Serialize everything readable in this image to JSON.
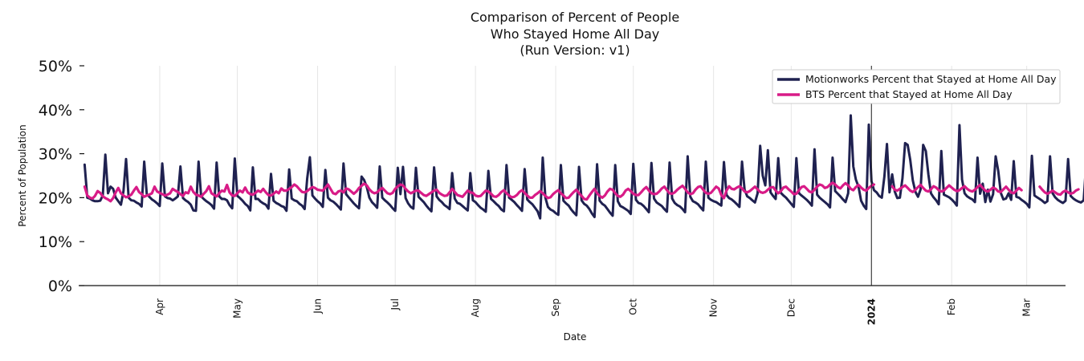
{
  "chart_data": {
    "type": "line",
    "title_lines": [
      "Comparison of Percent of People",
      "Who Stayed Home All Day",
      "(Run Version: v1)"
    ],
    "xlabel": "Date",
    "ylabel": "Percent of Population",
    "ylim": [
      0,
      50
    ],
    "yticks": [
      0,
      10,
      20,
      30,
      40,
      50
    ],
    "ytick_labels": [
      "0%",
      "10%",
      "20%",
      "30%",
      "40%",
      "50%"
    ],
    "x_range_days": [
      0,
      381
    ],
    "start_date": "2023-03-01",
    "month_ticks": [
      {
        "label": "Apr",
        "day": 31,
        "bold": false
      },
      {
        "label": "May",
        "day": 61,
        "bold": false
      },
      {
        "label": "Jun",
        "day": 92,
        "bold": false
      },
      {
        "label": "Jul",
        "day": 122,
        "bold": false
      },
      {
        "label": "Aug",
        "day": 153,
        "bold": false
      },
      {
        "label": "Sep",
        "day": 184,
        "bold": false
      },
      {
        "label": "Oct",
        "day": 214,
        "bold": false
      },
      {
        "label": "Nov",
        "day": 245,
        "bold": false
      },
      {
        "label": "Dec",
        "day": 275,
        "bold": false
      },
      {
        "label": "2024",
        "day": 306,
        "bold": true
      },
      {
        "label": "Feb",
        "day": 337,
        "bold": false
      },
      {
        "label": "Mar",
        "day": 366,
        "bold": false
      }
    ],
    "reference_line_day": 306,
    "legend_position": "top-right",
    "series": [
      {
        "name": "Motionworks Percent that Stayed at Home All Day",
        "color": "#1f2150",
        "x_start": 2,
        "values": [
          27.5,
          20.0,
          19.8,
          19.4,
          19.2,
          19.2,
          19.3,
          20.5,
          29.8,
          21.0,
          22.5,
          22.0,
          20.0,
          19.2,
          18.4,
          21.5,
          28.8,
          20.0,
          19.4,
          19.3,
          18.9,
          18.6,
          18.0,
          28.2,
          20.8,
          20.2,
          19.6,
          19.2,
          18.7,
          18.1,
          27.8,
          20.3,
          19.9,
          19.8,
          19.4,
          19.8,
          20.3,
          27.1,
          19.9,
          19.4,
          19.0,
          18.4,
          17.1,
          17.0,
          28.2,
          20.3,
          19.7,
          19.2,
          18.8,
          18.3,
          17.5,
          28.0,
          20.3,
          19.7,
          19.7,
          19.4,
          18.3,
          17.6,
          28.9,
          20.4,
          19.9,
          19.3,
          18.6,
          18.1,
          17.1,
          26.9,
          19.7,
          19.7,
          19.1,
          18.7,
          18.4,
          17.5,
          25.4,
          19.3,
          18.8,
          18.5,
          18.1,
          17.9,
          17.0,
          26.4,
          19.8,
          19.4,
          19.2,
          18.6,
          18.2,
          17.4,
          24.4,
          29.2,
          20.5,
          19.8,
          19.2,
          18.7,
          17.9,
          26.3,
          20.0,
          19.4,
          19.1,
          18.6,
          18.0,
          17.3,
          27.8,
          20.8,
          20.1,
          19.4,
          18.7,
          18.1,
          17.6,
          24.8,
          24.0,
          22.4,
          20.0,
          19.0,
          18.4,
          17.7,
          27.1,
          20.0,
          19.4,
          18.9,
          18.3,
          17.6,
          17.0,
          26.8,
          20.8,
          27.0,
          19.9,
          18.7,
          17.9,
          17.5,
          26.8,
          20.2,
          19.6,
          19.0,
          18.2,
          17.5,
          16.9,
          26.9,
          20.3,
          19.5,
          19.0,
          18.3,
          17.9,
          17.4,
          25.6,
          19.8,
          18.8,
          18.6,
          18.1,
          17.6,
          17.1,
          25.6,
          19.4,
          19.0,
          18.3,
          17.7,
          17.3,
          16.8,
          26.1,
          19.7,
          19.2,
          18.6,
          18.1,
          17.3,
          16.9,
          27.4,
          20.0,
          19.5,
          19.0,
          18.3,
          17.7,
          17.0,
          26.5,
          19.6,
          19.0,
          18.5,
          17.7,
          16.9,
          15.3,
          29.1,
          20.0,
          17.9,
          17.3,
          17.0,
          16.5,
          16.1,
          27.4,
          19.3,
          18.7,
          18.2,
          17.3,
          16.6,
          16.0,
          27.0,
          19.4,
          18.6,
          18.2,
          17.4,
          16.4,
          15.6,
          27.6,
          19.3,
          18.6,
          18.2,
          17.4,
          16.6,
          15.9,
          27.4,
          19.2,
          18.1,
          17.8,
          17.4,
          17.0,
          16.3,
          27.7,
          19.5,
          18.8,
          18.6,
          18.1,
          17.4,
          16.7,
          27.9,
          19.8,
          18.9,
          18.5,
          18.1,
          17.4,
          16.8,
          28.0,
          19.8,
          18.8,
          18.3,
          18.0,
          17.4,
          16.7,
          29.4,
          20.2,
          19.2,
          18.9,
          18.5,
          17.8,
          17.1,
          28.2,
          20.0,
          19.5,
          19.2,
          19.0,
          18.6,
          18.2,
          28.1,
          20.6,
          19.9,
          19.6,
          19.1,
          18.5,
          17.9,
          28.2,
          21.8,
          20.3,
          19.9,
          19.4,
          18.9,
          21.0,
          31.8,
          25.0,
          22.8,
          30.8,
          21.2,
          20.4,
          19.7,
          29.0,
          21.1,
          20.5,
          20.0,
          19.3,
          18.6,
          17.9,
          29.0,
          21.0,
          20.5,
          20.0,
          19.5,
          18.9,
          18.2,
          31.0,
          20.7,
          20.0,
          19.5,
          19.0,
          18.5,
          17.8,
          29.1,
          21.5,
          20.9,
          20.3,
          19.6,
          19.0,
          21.0,
          38.7,
          27.1,
          24.1,
          22.5,
          19.3,
          18.2,
          17.4,
          36.6,
          23.8,
          21.7,
          21.2,
          20.4,
          20.0,
          24.8,
          32.2,
          21.2,
          25.3,
          21.4,
          19.9,
          20.0,
          24.4,
          32.4,
          32.0,
          28.6,
          23.9,
          21.3,
          20.2,
          21.9,
          32.0,
          30.6,
          25.3,
          21.0,
          20.1,
          19.4,
          18.5,
          30.6,
          20.7,
          20.4,
          20.1,
          19.6,
          19.0,
          18.2,
          36.5,
          24.1,
          21.0,
          20.3,
          19.9,
          19.6,
          19.0,
          29.1,
          20.9,
          23.2,
          19.0,
          21.8,
          19.1,
          20.8,
          29.4,
          26.1,
          21.1,
          19.6,
          19.8,
          21.0,
          19.5,
          28.3,
          20.2,
          20.0,
          19.5,
          19.1,
          18.6,
          17.8,
          29.5,
          20.5,
          20.1,
          19.7,
          19.3,
          18.8,
          19.2,
          29.4,
          21.0,
          20.1,
          19.5,
          19.1,
          18.8,
          19.3,
          28.8,
          20.4,
          19.8,
          19.4,
          19.1,
          18.9,
          19.4,
          28.0
        ]
      },
      {
        "name": "BTS Percent that Stayed at Home All Day",
        "color": "#d81b87",
        "x_start": 2,
        "values": [
          22.5,
          20.5,
          20.0,
          19.8,
          20.4,
          21.5,
          21.1,
          20.3,
          19.9,
          19.6,
          19.2,
          19.9,
          21.2,
          22.2,
          21.0,
          20.5,
          20.1,
          20.3,
          20.7,
          21.6,
          22.4,
          21.3,
          20.8,
          20.2,
          20.5,
          20.7,
          21.0,
          22.5,
          21.4,
          21.1,
          20.8,
          20.5,
          20.7,
          21.0,
          22.0,
          21.6,
          21.3,
          20.8,
          20.4,
          21.2,
          21.0,
          22.5,
          21.3,
          20.7,
          20.5,
          20.2,
          20.9,
          21.5,
          22.6,
          21.0,
          20.6,
          20.3,
          21.0,
          21.6,
          21.4,
          22.9,
          21.2,
          20.5,
          20.4,
          21.0,
          21.6,
          21.2,
          22.3,
          21.2,
          20.8,
          20.7,
          21.1,
          21.6,
          21.3,
          22.0,
          21.2,
          20.6,
          20.5,
          20.9,
          21.4,
          21.0,
          22.1,
          21.6,
          21.6,
          22.0,
          22.4,
          23.0,
          22.6,
          21.9,
          21.3,
          21.2,
          21.5,
          22.0,
          22.4,
          22.2,
          21.8,
          21.7,
          21.6,
          22.3,
          23.0,
          22.0,
          21.0,
          20.8,
          21.4,
          21.6,
          21.2,
          22.1,
          21.9,
          21.4,
          20.9,
          21.4,
          22.2,
          22.7,
          23.2,
          22.8,
          21.9,
          21.3,
          21.0,
          21.2,
          21.8,
          22.2,
          21.6,
          21.0,
          20.8,
          21.1,
          22.0,
          22.6,
          23.0,
          22.8,
          22.0,
          21.4,
          21.0,
          21.3,
          21.6,
          21.6,
          21.1,
          20.6,
          20.4,
          20.8,
          21.2,
          21.6,
          21.8,
          21.1,
          20.7,
          20.4,
          20.5,
          21.2,
          22.0,
          21.3,
          20.6,
          20.4,
          20.2,
          20.9,
          21.6,
          21.2,
          21.1,
          20.5,
          20.3,
          20.4,
          21.0,
          21.6,
          21.4,
          20.9,
          20.3,
          20.2,
          20.6,
          21.3,
          21.7,
          21.0,
          20.5,
          20.1,
          20.2,
          20.6,
          21.3,
          21.7,
          21.1,
          20.5,
          20.0,
          20.0,
          20.6,
          21.0,
          21.5,
          21.0,
          20.4,
          19.9,
          20.1,
          20.8,
          21.3,
          21.7,
          21.0,
          20.5,
          19.9,
          20.0,
          20.7,
          21.3,
          21.8,
          21.0,
          20.4,
          19.7,
          19.6,
          20.5,
          21.3,
          22.0,
          21.0,
          20.4,
          20.0,
          20.5,
          21.4,
          22.0,
          21.8,
          21.0,
          20.4,
          20.2,
          20.7,
          21.6,
          22.0,
          21.5,
          20.9,
          20.6,
          20.6,
          21.2,
          21.9,
          22.4,
          21.6,
          21.0,
          20.8,
          20.9,
          21.4,
          22.1,
          22.5,
          21.7,
          21.0,
          20.9,
          21.2,
          21.8,
          22.3,
          22.7,
          22.0,
          21.2,
          20.8,
          21.0,
          21.8,
          22.4,
          22.6,
          21.8,
          21.1,
          20.9,
          21.1,
          21.8,
          22.5,
          22.1,
          20.6,
          19.9,
          21.6,
          22.6,
          22.0,
          21.9,
          22.3,
          22.6,
          22.1,
          21.4,
          21.2,
          21.5,
          22.0,
          22.5,
          21.9,
          21.3,
          21.1,
          21.3,
          21.8,
          22.3,
          22.4,
          21.6,
          21.0,
          21.5,
          22.3,
          22.5,
          21.9,
          21.4,
          20.8,
          20.9,
          21.7,
          22.4,
          22.6,
          22.0,
          21.4,
          21.2,
          21.8,
          22.5,
          23.0,
          22.8,
          22.2,
          22.4,
          23.0,
          23.4,
          23.0,
          22.4,
          22.1,
          22.8,
          23.3,
          22.8,
          22.0,
          21.7,
          22.4,
          22.9,
          22.3,
          21.8,
          21.6,
          22.2,
          22.7,
          23.0,
          null,
          null,
          null,
          null,
          null,
          null,
          22.6,
          21.8,
          21.6,
          22.0,
          22.4,
          22.8,
          22.2,
          21.6,
          21.3,
          21.8,
          22.4,
          22.9,
          22.2,
          21.6,
          21.4,
          21.9,
          22.6,
          22.3,
          21.7,
          21.4,
          21.6,
          22.2,
          22.8,
          22.3,
          21.8,
          21.5,
          21.7,
          22.2,
          22.6,
          22.0,
          21.6,
          21.4,
          21.8,
          22.4,
          22.9,
          22.2,
          21.6,
          21.4,
          21.8,
          22.3,
          22.0,
          21.4,
          21.3,
          21.9,
          22.5,
          21.8,
          21.2,
          21.0,
          21.6,
          22.2,
          21.7,
          null,
          null,
          null,
          null,
          null,
          null,
          22.5,
          21.8,
          21.2,
          20.9,
          21.2,
          21.6,
          21.2,
          20.8,
          20.7,
          21.3,
          21.6,
          21.2,
          20.9,
          21.1,
          21.6,
          21.9
        ]
      }
    ]
  }
}
